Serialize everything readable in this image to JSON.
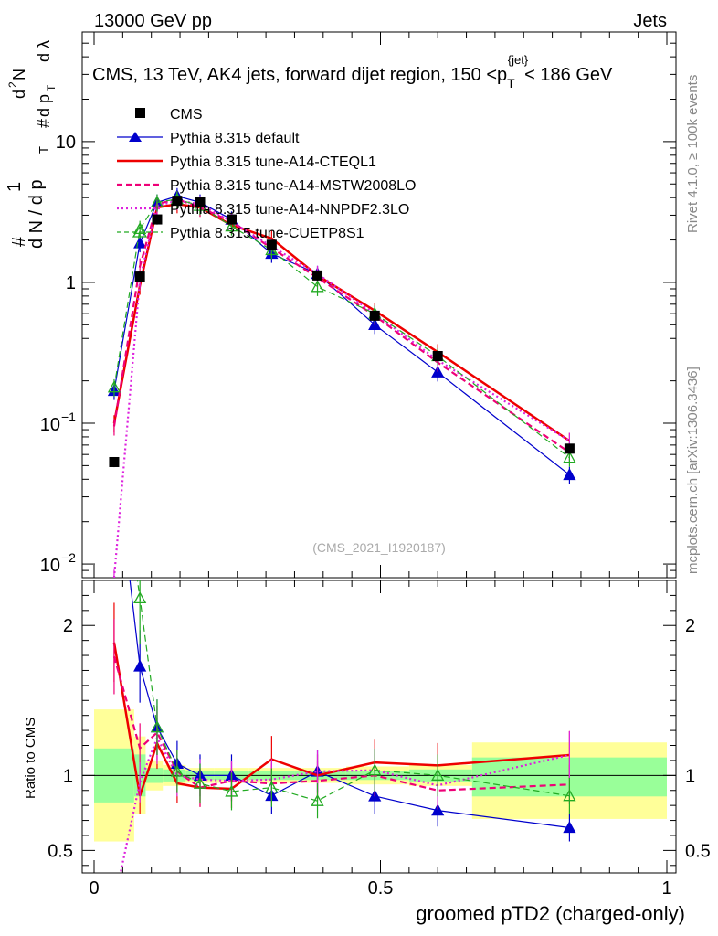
{
  "header": {
    "left_label": "13000 GeV pp",
    "right_label": "Jets"
  },
  "side_labels": {
    "rivet": "Rivet 4.1.0, ≥ 100k events",
    "mcplots": "mcplots.cern.ch [arXiv:1306.3436]"
  },
  "y_axis_main": {
    "label_parts": [
      "#",
      "1",
      "d N / d p",
      "T",
      "#",
      "d p",
      "T",
      "d",
      "2",
      "N",
      "d λ"
    ]
  },
  "colors": {
    "cms": "#000000",
    "default": "#0000cc",
    "cteql1": "#ee0000",
    "mstw": "#ee0077",
    "nnpdf": "#dd22dd",
    "cuetp8s1": "#22aa22",
    "band_inner": "#99ff99",
    "band_outer": "#ffff99"
  },
  "chart_data": {
    "type": "line",
    "title": "CMS, 13 TeV, AK4 jets, forward dijet region, 150 <p_T^{jet}< 186 GeV",
    "title_parts": {
      "prefix": "CMS, 13 TeV, AK4 jets, forward dijet region, 150 <p",
      "sub": "T",
      "sup": "{jet}",
      "suffix": "< 186 GeV"
    },
    "watermark": "(CMS_2021_I1920187)",
    "xlabel": "groomed pTD2 (charged-only)",
    "ratio_ylabel": "Ratio to CMS",
    "xlim": [
      0,
      1
    ],
    "ylim_main": [
      0.008,
      60
    ],
    "ylim_ratio": [
      0.35,
      2.3
    ],
    "x_ticks": [
      "0",
      "0.5",
      "1"
    ],
    "main_y_ticks": [
      {
        "value": 10,
        "label": "10"
      },
      {
        "value": 1,
        "label": "1"
      },
      {
        "value": 0.1,
        "base": "10",
        "exp": "−1"
      },
      {
        "value": 0.01,
        "base": "10",
        "exp": "−2"
      }
    ],
    "ratio_y_ticks": [
      {
        "value": 2,
        "label": "2"
      },
      {
        "value": 1,
        "label": "1"
      },
      {
        "value": 0.5,
        "label": "0.5"
      }
    ],
    "x": [
      0.035,
      0.08,
      0.11,
      0.145,
      0.185,
      0.24,
      0.31,
      0.39,
      0.49,
      0.6,
      0.83
    ],
    "data": {
      "name": "CMS",
      "values": [
        0.053,
        1.1,
        2.8,
        3.8,
        3.7,
        2.8,
        1.85,
        1.12,
        0.58,
        0.3,
        0.066
      ]
    },
    "series": [
      {
        "name": "Pythia 8.315 default",
        "key": "default",
        "style": "solid",
        "marker": "tri-filled",
        "values": [
          0.17,
          1.9,
          3.7,
          4.1,
          3.7,
          2.8,
          1.6,
          1.15,
          0.5,
          0.23,
          0.043
        ]
      },
      {
        "name": "Pythia 8.315 tune-A14-CTEQL1",
        "key": "cteql1",
        "style": "solid",
        "marker": "none",
        "values": [
          0.1,
          0.95,
          3.4,
          3.6,
          3.4,
          2.55,
          2.05,
          1.12,
          0.63,
          0.32,
          0.075
        ]
      },
      {
        "name": "Pythia 8.315 tune-A14-MSTW2008LO",
        "key": "mstw",
        "style": "dashed",
        "marker": "none",
        "values": [
          0.095,
          1.3,
          3.6,
          3.9,
          3.4,
          2.7,
          1.75,
          1.08,
          0.58,
          0.27,
          0.062
        ]
      },
      {
        "name": "Pythia 8.315 tune-A14-NNPDF2.3LO",
        "key": "nnpdf",
        "style": "dotted",
        "marker": "none",
        "values": [
          0.008,
          1.05,
          3.5,
          3.8,
          3.6,
          2.7,
          1.8,
          1.15,
          0.6,
          0.28,
          0.075
        ]
      },
      {
        "name": "Pythia 8.315 tune-CUETP8S1",
        "key": "cuetp8s1",
        "style": "dashed",
        "marker": "tri-open",
        "values": [
          0.18,
          2.4,
          3.7,
          3.9,
          3.5,
          2.5,
          1.7,
          0.93,
          0.6,
          0.3,
          0.057
        ]
      }
    ],
    "ratio_bands": [
      {
        "x0": 0.0,
        "x1": 0.07,
        "inner": [
          0.82,
          1.18
        ],
        "outer": [
          0.56,
          1.44
        ]
      },
      {
        "x0": 0.07,
        "x1": 0.09,
        "inner": [
          0.86,
          1.14
        ],
        "outer": [
          0.74,
          1.26
        ]
      },
      {
        "x0": 0.09,
        "x1": 0.12,
        "inner": [
          0.95,
          1.05
        ],
        "outer": [
          0.9,
          1.1
        ]
      },
      {
        "x0": 0.12,
        "x1": 0.16,
        "inner": [
          0.96,
          1.04
        ],
        "outer": [
          0.93,
          1.07
        ]
      },
      {
        "x0": 0.16,
        "x1": 0.21,
        "inner": [
          0.97,
          1.03
        ],
        "outer": [
          0.95,
          1.05
        ]
      },
      {
        "x0": 0.21,
        "x1": 0.27,
        "inner": [
          0.97,
          1.03
        ],
        "outer": [
          0.95,
          1.05
        ]
      },
      {
        "x0": 0.27,
        "x1": 0.35,
        "inner": [
          0.97,
          1.03
        ],
        "outer": [
          0.95,
          1.05
        ]
      },
      {
        "x0": 0.35,
        "x1": 0.44,
        "inner": [
          0.97,
          1.03
        ],
        "outer": [
          0.95,
          1.05
        ]
      },
      {
        "x0": 0.44,
        "x1": 0.55,
        "inner": [
          0.97,
          1.03
        ],
        "outer": [
          0.94,
          1.06
        ]
      },
      {
        "x0": 0.55,
        "x1": 0.66,
        "inner": [
          0.96,
          1.04
        ],
        "outer": [
          0.93,
          1.07
        ]
      },
      {
        "x0": 0.66,
        "x1": 1.0,
        "inner": [
          0.86,
          1.12
        ],
        "outer": [
          0.71,
          1.22
        ]
      }
    ]
  }
}
